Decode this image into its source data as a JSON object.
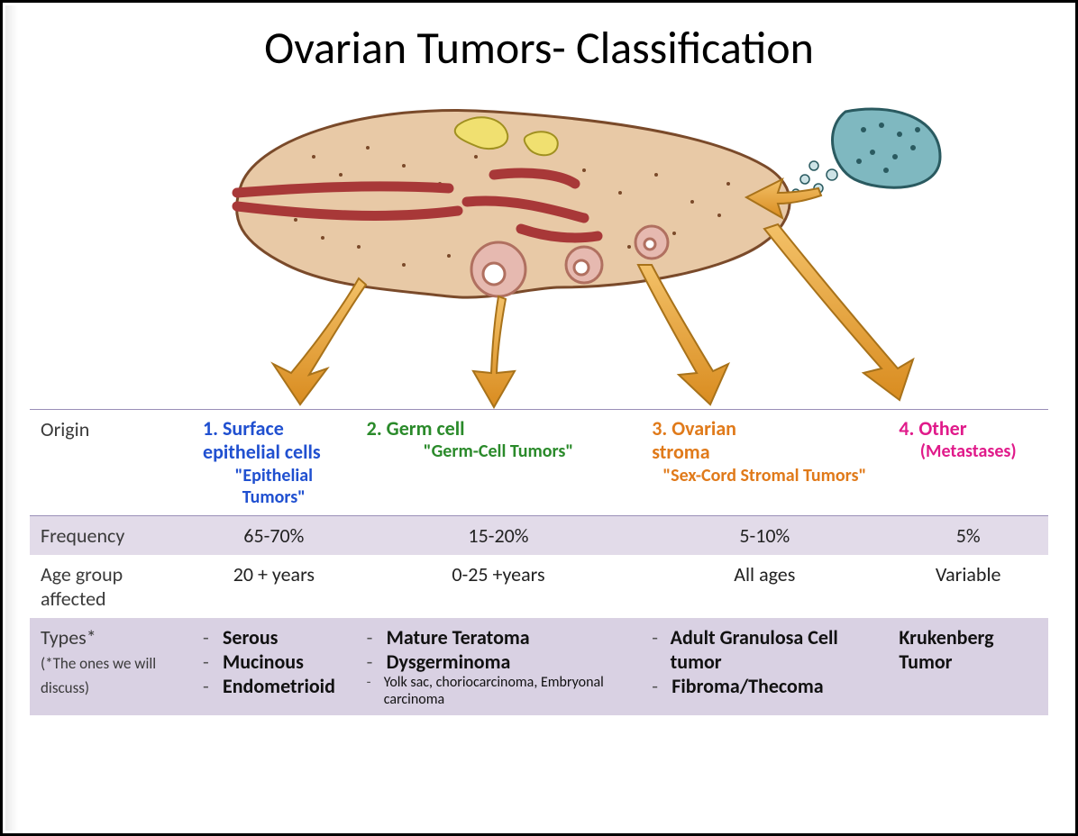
{
  "title": "Ovarian Tumors- Classification",
  "diagram": {
    "background_color": "#ffffff",
    "ovary_fill": "#e8c9a6",
    "ovary_stroke": "#7a4a2a",
    "vessel_color": "#a83838",
    "follicle_fill": "#e6b9b0",
    "follicle_stroke": "#b07060",
    "yellow_body_fill": "#f0e070",
    "yellow_body_stroke": "#a09020",
    "arrow_fill": "#e6a23c",
    "arrow_stroke": "#a8721a",
    "metastasis_fill": "#7fb8c0",
    "metastasis_stroke": "#2a5a60",
    "cells_color": "#5a8890"
  },
  "table": {
    "border_color": "#9a8fb8",
    "row_freq_bg": "#e2dbe9",
    "row_age_bg": "#ffffff",
    "row_types_bg": "#d9d1e3",
    "label_color": "#3a3a3a",
    "labels": {
      "origin": "Origin",
      "frequency": "Frequency",
      "age": "Age group affected",
      "types": "Types*",
      "types_note": "(*The ones we will discuss)"
    },
    "columns": [
      {
        "color": "#2050d0",
        "head_line1": "1. Surface",
        "head_line2": "epithelial cells",
        "sub": "\"Epithelial Tumors\"",
        "frequency": "65-70%",
        "age": "20 + years",
        "types_bold": [
          "Serous",
          "Mucinous",
          "Endometrioid"
        ],
        "types_small": []
      },
      {
        "color": "#2a8a2a",
        "head_line1": "2. Germ cell",
        "head_line2": "",
        "sub": "\"Germ-Cell Tumors\"",
        "frequency": "15-20%",
        "age": "0-25 +years",
        "types_bold": [
          "Mature Teratoma",
          "Dysgerminoma"
        ],
        "types_small": [
          "Yolk sac, choriocarcinoma, Embryonal carcinoma"
        ]
      },
      {
        "color": "#e07a1a",
        "head_line1": "3. Ovarian",
        "head_line2": "stroma",
        "sub": "\"Sex-Cord Stromal Tumors\"",
        "frequency": "5-10%",
        "age": "All ages",
        "types_bold": [
          "Adult Granulosa Cell tumor",
          "Fibroma/Thecoma"
        ],
        "types_small": []
      },
      {
        "color": "#e01a8a",
        "head_line1": "4. Other",
        "head_line2": "",
        "sub": "(Metastases)",
        "frequency": "5%",
        "age": "Variable",
        "types_bold": [
          "Krukenberg Tumor"
        ],
        "types_small": []
      }
    ]
  }
}
